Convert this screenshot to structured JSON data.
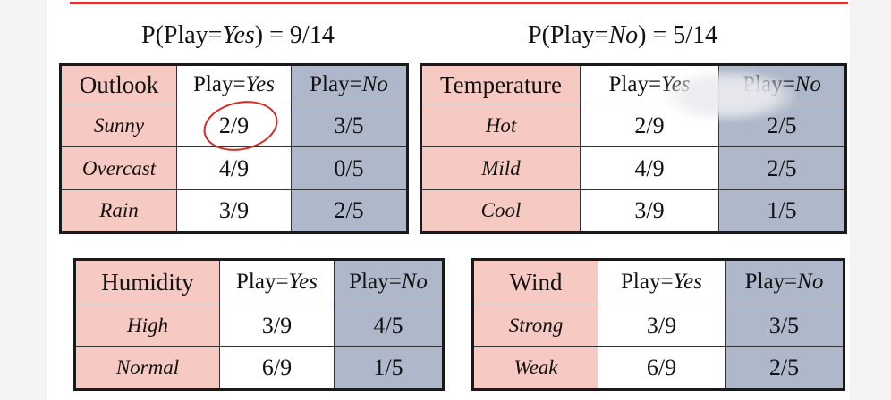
{
  "priors": {
    "yes": {
      "prefix": "P(Play=",
      "value": "Yes",
      "suffix": ") = 9/14"
    },
    "no": {
      "prefix": "P(Play=",
      "value": "No",
      "suffix": ") = 5/14"
    }
  },
  "col_yes": {
    "prefix": "Play=",
    "value": "Yes"
  },
  "col_no": {
    "prefix": "Play=",
    "value": "No"
  },
  "outlook": {
    "header": "Outlook",
    "rows": [
      {
        "label": "Sunny",
        "yes": "2/9",
        "no": "3/5"
      },
      {
        "label": "Overcast",
        "yes": "4/9",
        "no": "0/5"
      },
      {
        "label": "Rain",
        "yes": "3/9",
        "no": "2/5"
      }
    ]
  },
  "temperature": {
    "header": "Temperature",
    "rows": [
      {
        "label": "Hot",
        "yes": "2/9",
        "no": "2/5"
      },
      {
        "label": "Mild",
        "yes": "4/9",
        "no": "2/5"
      },
      {
        "label": "Cool",
        "yes": "3/9",
        "no": "1/5"
      }
    ]
  },
  "humidity": {
    "header": "Humidity",
    "rows": [
      {
        "label": "High",
        "yes": "3/9",
        "no": "4/5"
      },
      {
        "label": "Normal",
        "yes": "6/9",
        "no": "1/5"
      }
    ]
  },
  "wind": {
    "header": "Wind",
    "rows": [
      {
        "label": "Strong",
        "yes": "3/9",
        "no": "3/5"
      },
      {
        "label": "Weak",
        "yes": "6/9",
        "no": "2/5"
      }
    ]
  },
  "colors": {
    "accent": "#c0241f",
    "attr_bg": "#f6c9c2",
    "no_bg": "#aeb8ca"
  }
}
